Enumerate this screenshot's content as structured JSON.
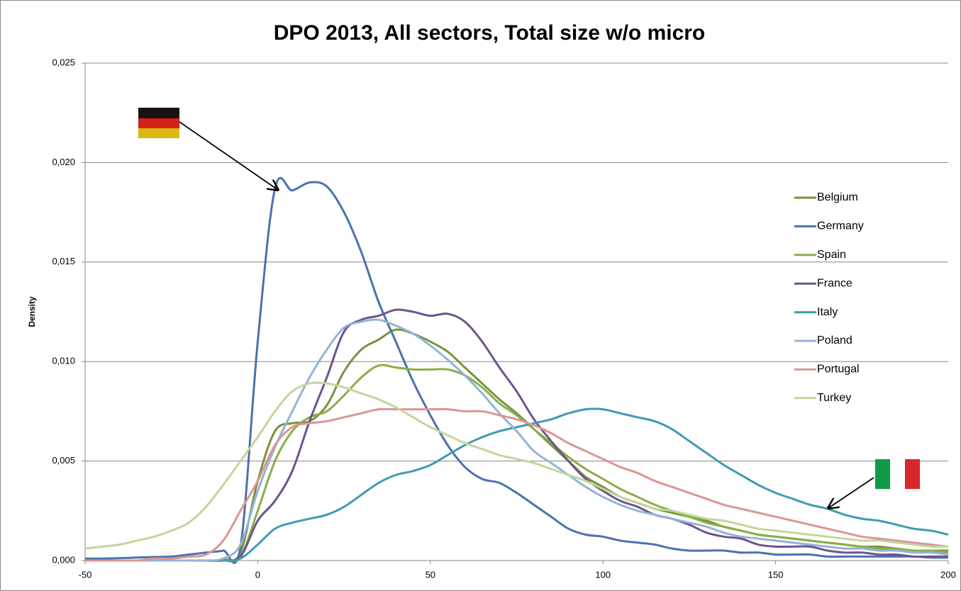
{
  "chart_data": {
    "type": "line",
    "title": "DPO 2013, All sectors, Total size w/o micro",
    "y_label": "Density",
    "x": [
      -50,
      -45,
      -40,
      -35,
      -30,
      -25,
      -20,
      -15,
      -10,
      -5,
      0,
      5,
      10,
      15,
      20,
      25,
      30,
      35,
      40,
      45,
      50,
      55,
      60,
      65,
      70,
      75,
      80,
      85,
      90,
      95,
      100,
      105,
      110,
      115,
      120,
      125,
      130,
      135,
      140,
      145,
      150,
      155,
      160,
      165,
      170,
      175,
      180,
      185,
      190,
      195,
      200
    ],
    "series": [
      {
        "name": "Belgium",
        "color": "#77933c",
        "values": [
          0,
          0,
          0,
          0,
          0,
          0,
          0,
          0,
          5e-05,
          0.0004,
          0.004,
          0.0065,
          0.0069,
          0.007,
          0.0078,
          0.0095,
          0.0106,
          0.0111,
          0.0116,
          0.0114,
          0.011,
          0.0105,
          0.0097,
          0.0089,
          0.0081,
          0.0074,
          0.0066,
          0.0058,
          0.005,
          0.0042,
          0.0037,
          0.0032,
          0.0029,
          0.0026,
          0.0024,
          0.0022,
          0.002,
          0.0017,
          0.0015,
          0.0013,
          0.0012,
          0.0011,
          0.001,
          0.0009,
          0.0008,
          0.0007,
          0.0007,
          0.0006,
          0.0005,
          0.0005,
          0.0005
        ]
      },
      {
        "name": "Germany",
        "color": "#4a72ad",
        "values": [
          0.0001,
          0.0001,
          0.00012,
          0.00015,
          0.00018,
          0.0002,
          0.0003,
          0.0004,
          0.0005,
          0.0007,
          0.011,
          0.0187,
          0.0186,
          0.019,
          0.0188,
          0.0175,
          0.0155,
          0.013,
          0.011,
          0.009,
          0.0073,
          0.0058,
          0.0047,
          0.0041,
          0.0039,
          0.0034,
          0.0028,
          0.0022,
          0.0016,
          0.0013,
          0.0012,
          0.001,
          0.0009,
          0.0008,
          0.0006,
          0.0005,
          0.0005,
          0.0005,
          0.0004,
          0.0004,
          0.0003,
          0.0003,
          0.0003,
          0.0002,
          0.0002,
          0.0002,
          0.0002,
          0.0002,
          0.0002,
          0.00015,
          0.00015
        ]
      },
      {
        "name": "Spain",
        "color": "#8cad48",
        "values": [
          0,
          0,
          0,
          0,
          0,
          0,
          0,
          0,
          0,
          0.0002,
          0.0025,
          0.005,
          0.0065,
          0.0072,
          0.0075,
          0.0083,
          0.0092,
          0.0098,
          0.0097,
          0.0096,
          0.0096,
          0.0096,
          0.0093,
          0.0087,
          0.0079,
          0.0073,
          0.0066,
          0.0059,
          0.0052,
          0.0046,
          0.0041,
          0.0036,
          0.0032,
          0.0028,
          0.0025,
          0.0022,
          0.0019,
          0.0017,
          0.0015,
          0.0013,
          0.0012,
          0.0011,
          0.001,
          0.0009,
          0.0008,
          0.0007,
          0.0006,
          0.0006,
          0.0005,
          0.0005,
          0.0004
        ]
      },
      {
        "name": "France",
        "color": "#6e5390",
        "values": [
          0,
          0,
          0,
          0,
          0,
          0,
          0,
          0,
          0,
          0.0002,
          0.002,
          0.003,
          0.0045,
          0.007,
          0.0092,
          0.0115,
          0.0121,
          0.0123,
          0.0126,
          0.0125,
          0.0123,
          0.0124,
          0.012,
          0.011,
          0.0097,
          0.0085,
          0.0071,
          0.006,
          0.005,
          0.0041,
          0.0035,
          0.003,
          0.0027,
          0.0023,
          0.0021,
          0.0018,
          0.0014,
          0.0012,
          0.0011,
          0.0008,
          0.0007,
          0.0007,
          0.0007,
          0.0005,
          0.0004,
          0.0004,
          0.0003,
          0.0003,
          0.0002,
          0.0002,
          0.0002
        ]
      },
      {
        "name": "Italy",
        "color": "#3f9bb0",
        "values": [
          0,
          0,
          0,
          0,
          0,
          0,
          0,
          0,
          0,
          0.0001,
          0.0008,
          0.0016,
          0.0019,
          0.0021,
          0.0023,
          0.0027,
          0.0033,
          0.0039,
          0.0043,
          0.0045,
          0.0048,
          0.0053,
          0.0058,
          0.0062,
          0.0065,
          0.0067,
          0.0069,
          0.0071,
          0.0074,
          0.0076,
          0.0076,
          0.0074,
          0.0072,
          0.007,
          0.0066,
          0.006,
          0.0054,
          0.0048,
          0.0043,
          0.0038,
          0.0034,
          0.0031,
          0.0028,
          0.0026,
          0.0023,
          0.0021,
          0.002,
          0.0018,
          0.0016,
          0.0015,
          0.0013
        ]
      },
      {
        "name": "Poland",
        "color": "#95b3d7",
        "values": [
          0,
          0,
          0,
          0,
          0,
          0,
          0,
          0,
          0.0001,
          0.0008,
          0.0035,
          0.0057,
          0.0075,
          0.0092,
          0.0106,
          0.0117,
          0.012,
          0.0121,
          0.0118,
          0.0114,
          0.0108,
          0.0101,
          0.0093,
          0.0084,
          0.0074,
          0.0065,
          0.0055,
          0.0049,
          0.0043,
          0.0037,
          0.0032,
          0.0028,
          0.0025,
          0.0023,
          0.0021,
          0.0019,
          0.0017,
          0.0014,
          0.0012,
          0.0011,
          0.001,
          0.0009,
          0.0008,
          0.0007,
          0.0006,
          0.0006,
          0.0005,
          0.0005,
          0.0004,
          0.0004,
          0.0003
        ]
      },
      {
        "name": "Portugal",
        "color": "#d99694",
        "values": [
          0,
          0,
          0,
          0,
          0.0001,
          0.0001,
          0.0002,
          0.0003,
          0.001,
          0.0025,
          0.004,
          0.0058,
          0.0067,
          0.0069,
          0.007,
          0.0072,
          0.0074,
          0.0076,
          0.0076,
          0.0076,
          0.0076,
          0.0076,
          0.0075,
          0.0075,
          0.0073,
          0.0071,
          0.0068,
          0.0064,
          0.0059,
          0.0055,
          0.0051,
          0.0047,
          0.0044,
          0.004,
          0.0037,
          0.0034,
          0.0031,
          0.0028,
          0.0026,
          0.0024,
          0.0022,
          0.002,
          0.0018,
          0.0016,
          0.0014,
          0.0012,
          0.0011,
          0.001,
          0.0009,
          0.0008,
          0.0007
        ]
      },
      {
        "name": "Turkey",
        "color": "#c3d69b",
        "values": [
          0.0006,
          0.0007,
          0.0008,
          0.001,
          0.0012,
          0.0015,
          0.0019,
          0.0027,
          0.0038,
          0.005,
          0.0062,
          0.0075,
          0.0085,
          0.0089,
          0.0089,
          0.0087,
          0.0084,
          0.0081,
          0.0077,
          0.0072,
          0.0067,
          0.0063,
          0.0059,
          0.0056,
          0.0053,
          0.0051,
          0.0049,
          0.0046,
          0.0043,
          0.004,
          0.0036,
          0.0032,
          0.0029,
          0.0026,
          0.0025,
          0.0023,
          0.0021,
          0.002,
          0.0018,
          0.0016,
          0.0015,
          0.0014,
          0.0013,
          0.0012,
          0.0011,
          0.001,
          0.001,
          0.0009,
          0.0008,
          0.0007,
          0.0007
        ]
      }
    ],
    "xlim": [
      -50,
      200
    ],
    "xticks": [
      -50,
      0,
      50,
      100,
      150,
      200
    ],
    "ylim": [
      0,
      0.025
    ],
    "yticks": [
      {
        "value": 0,
        "label": "0,000"
      },
      {
        "value": 0.005,
        "label": "0,005"
      },
      {
        "value": 0.01,
        "label": "0,010"
      },
      {
        "value": 0.015,
        "label": "0,015"
      },
      {
        "value": 0.02,
        "label": "0,020"
      },
      {
        "value": 0.025,
        "label": "0,025"
      }
    ],
    "grid": true,
    "legend": "right"
  }
}
